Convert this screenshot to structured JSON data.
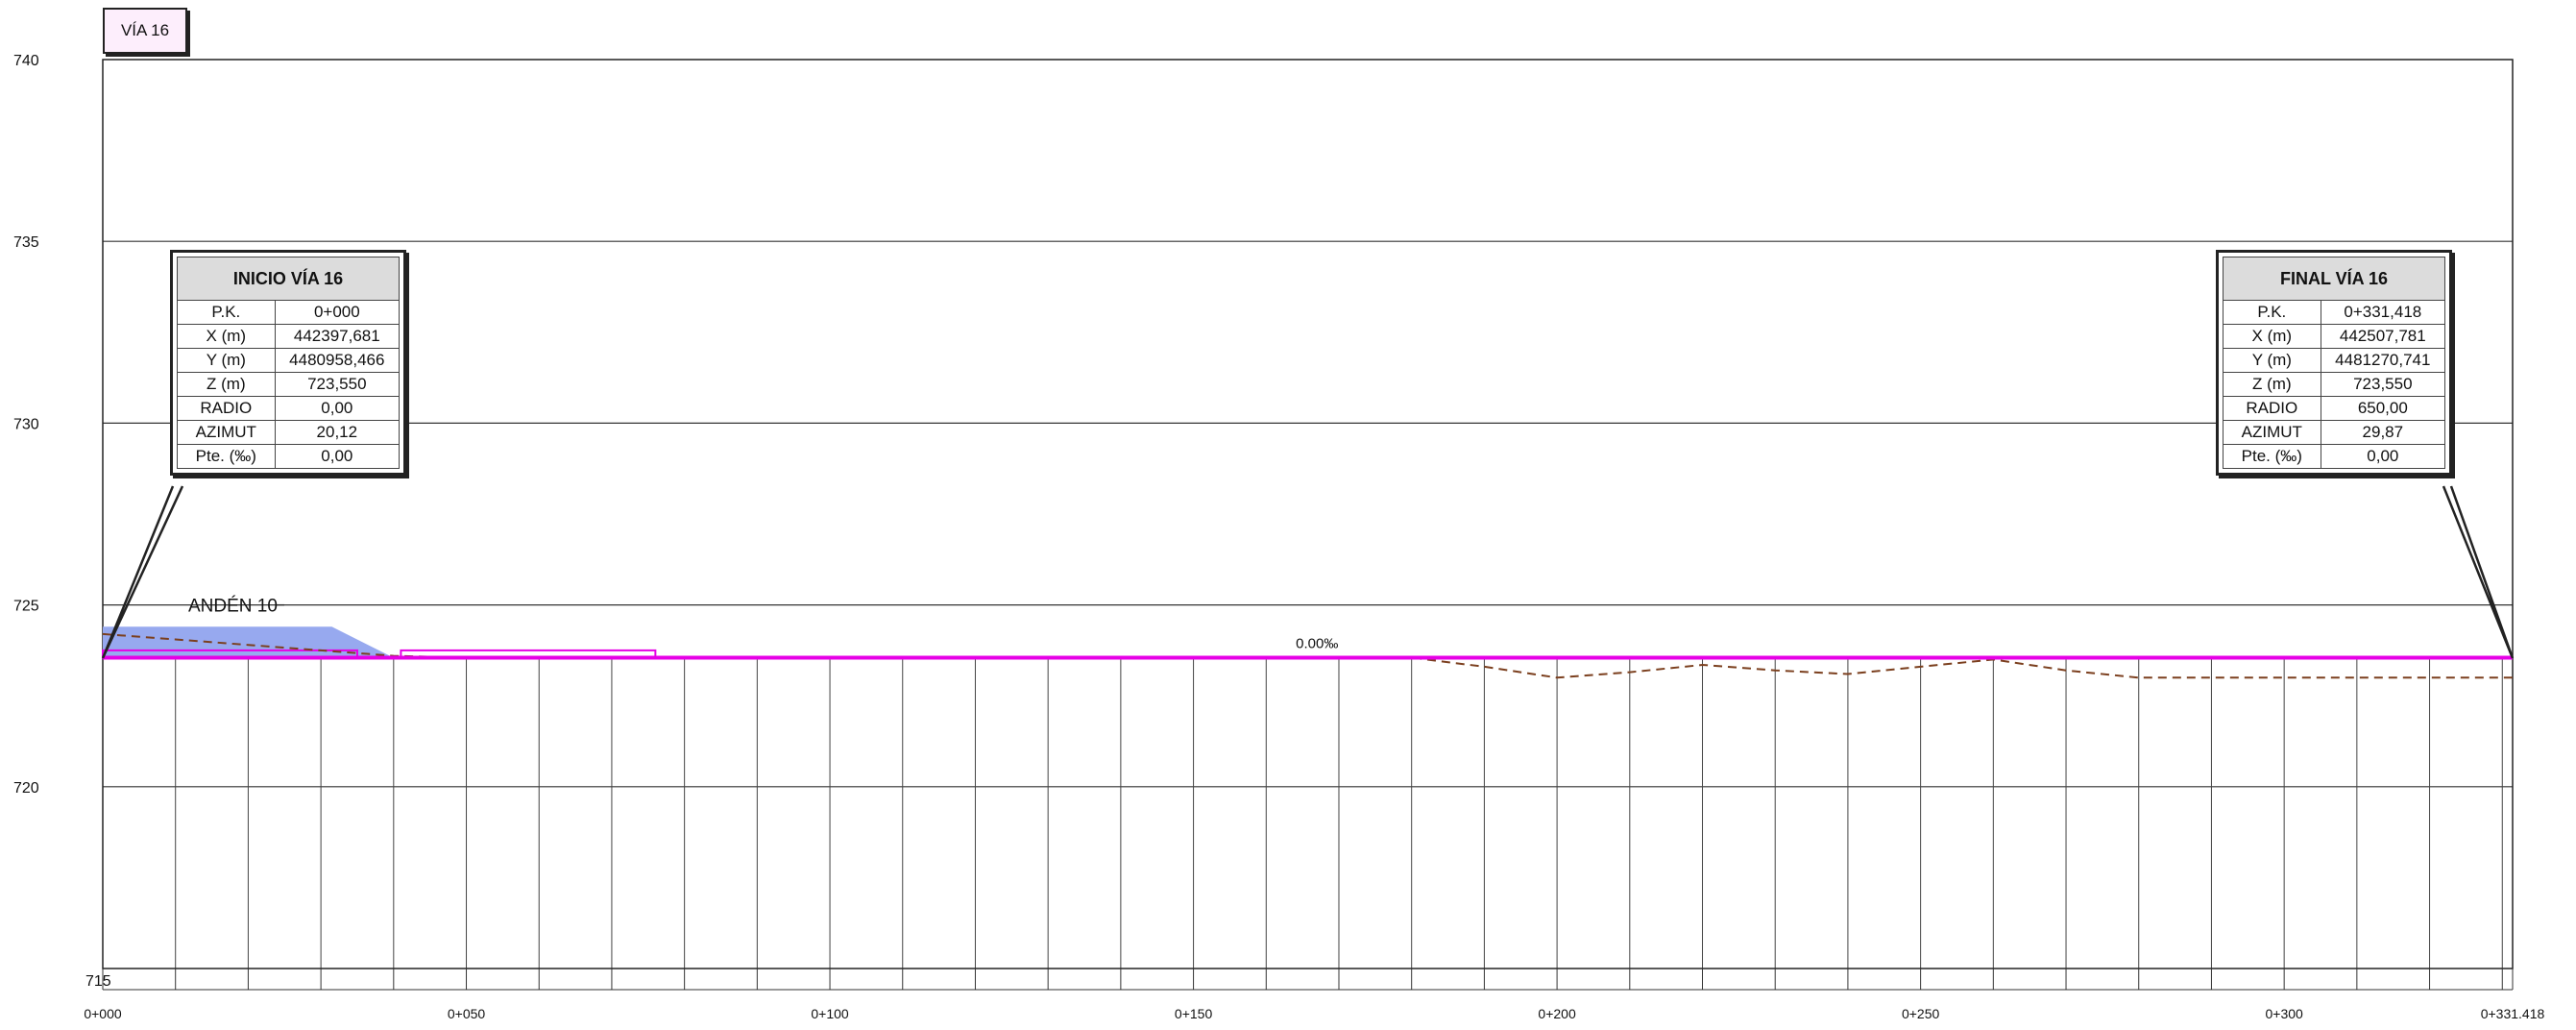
{
  "title_badge": "VÍA 16",
  "colors": {
    "grid": "#333333",
    "rail": "#e600e6",
    "terrain": "#7b3f1e",
    "platform_fill": "#97a9ef",
    "badge_bg": "#fdeefc"
  },
  "info_start": {
    "title": "INICIO VÍA 16",
    "rows": [
      {
        "k": "P.K.",
        "v": "0+000"
      },
      {
        "k": "X (m)",
        "v": "442397,681"
      },
      {
        "k": "Y (m)",
        "v": "4480958,466"
      },
      {
        "k": "Z (m)",
        "v": "723,550"
      },
      {
        "k": "RADIO",
        "v": "0,00"
      },
      {
        "k": "AZIMUT",
        "v": "20,12"
      },
      {
        "k": "Pte. (‰)",
        "v": "0,00"
      }
    ]
  },
  "info_end": {
    "title": "FINAL VÍA 16",
    "rows": [
      {
        "k": "P.K.",
        "v": "0+331,418"
      },
      {
        "k": "X (m)",
        "v": "442507,781"
      },
      {
        "k": "Y (m)",
        "v": "4481270,741"
      },
      {
        "k": "Z (m)",
        "v": "723,550"
      },
      {
        "k": "RADIO",
        "v": "650,00"
      },
      {
        "k": "AZIMUT",
        "v": "29,87"
      },
      {
        "k": "Pte. (‰)",
        "v": "0,00"
      }
    ]
  },
  "chart_data": {
    "type": "line",
    "xlim": [
      0,
      331.418
    ],
    "ylim": [
      715,
      740
    ],
    "y_ticks": [
      740,
      735,
      730,
      725,
      720,
      715
    ],
    "x_ticks": [
      {
        "v": 0,
        "label": "0+000"
      },
      {
        "v": 50,
        "label": "0+050"
      },
      {
        "v": 100,
        "label": "0+100"
      },
      {
        "v": 150,
        "label": "0+150"
      },
      {
        "v": 200,
        "label": "0+200"
      },
      {
        "v": 250,
        "label": "0+250"
      },
      {
        "v": 300,
        "label": "0+300"
      },
      {
        "v": 331.418,
        "label": "0+331.418"
      }
    ],
    "grid": true,
    "slope_label": "0.00‰",
    "slope_label_x": 167,
    "platform_label": "ANDÉN 10",
    "series": [
      {
        "role": "rail",
        "x": [
          0,
          331.418
        ],
        "y": [
          723.55,
          723.55
        ]
      },
      {
        "role": "terrain",
        "x": [
          0,
          10,
          20,
          30,
          40,
          50,
          60,
          70,
          80,
          90,
          100,
          110,
          120,
          130,
          140,
          150,
          160,
          170,
          180,
          190,
          200,
          210,
          220,
          230,
          240,
          250,
          260,
          270,
          280,
          290,
          300,
          310,
          320,
          331.418
        ],
        "y": [
          724.2,
          724.05,
          723.9,
          723.75,
          723.6,
          723.55,
          723.55,
          723.55,
          723.55,
          723.55,
          723.55,
          723.55,
          723.55,
          723.55,
          723.55,
          723.55,
          723.55,
          723.55,
          723.55,
          723.3,
          723.0,
          723.15,
          723.35,
          723.2,
          723.1,
          723.3,
          723.5,
          723.2,
          723.0,
          723.0,
          723.0,
          723.0,
          723.0,
          723.0
        ]
      }
    ],
    "platforms": [
      {
        "x": [
          0,
          35
        ],
        "y": [
          723.55,
          723.75
        ],
        "filled": true
      },
      {
        "x": [
          41,
          76
        ],
        "y": [
          723.55,
          723.75
        ],
        "filled": false
      }
    ]
  }
}
